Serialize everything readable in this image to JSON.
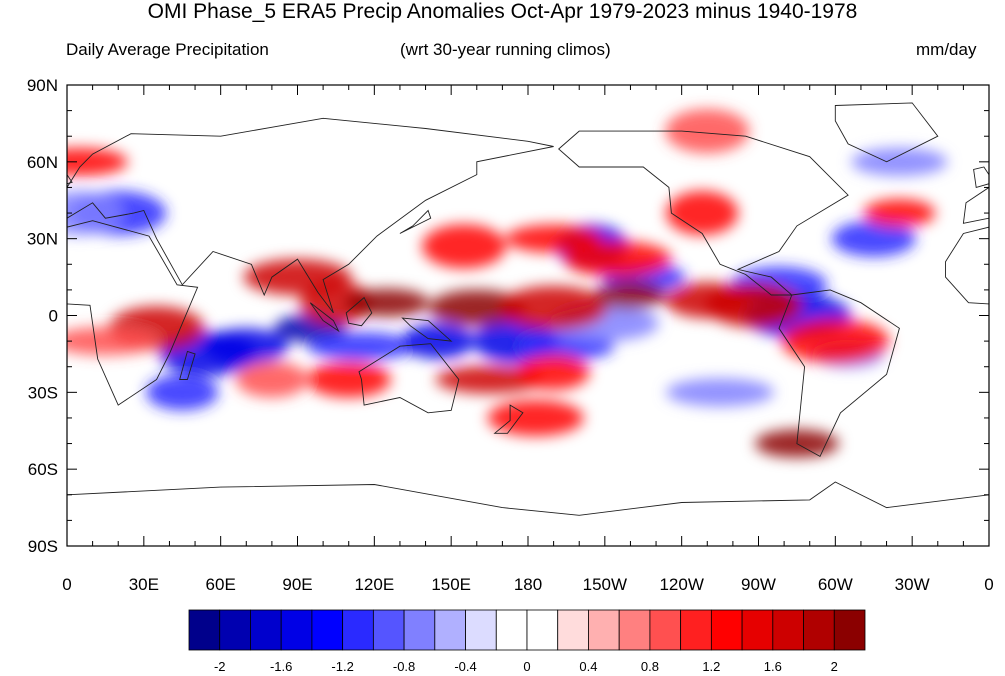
{
  "title": "OMI Phase_5 ERA5 Precip Anomalies Oct-Apr 1979-2023 minus 1940-1978",
  "subtitle_left": "Daily Average Precipitation",
  "subtitle_center": "(wrt 30-year running climos)",
  "subtitle_right": "mm/day",
  "lon_labels": [
    "0",
    "30E",
    "60E",
    "90E",
    "120E",
    "150E",
    "180",
    "150W",
    "120W",
    "90W",
    "60W",
    "30W",
    "0"
  ],
  "lat_labels": [
    "90N",
    "60N",
    "30N",
    "0",
    "30S",
    "60S",
    "90S"
  ],
  "colorbar": {
    "colors": [
      "#00008b",
      "#0000b0",
      "#0000cd",
      "#0000e6",
      "#0000ff",
      "#2a2aff",
      "#5555ff",
      "#8080ff",
      "#b0b0ff",
      "#dcdcff",
      "#ffffff",
      "#ffffff",
      "#ffdcdc",
      "#ffb0b0",
      "#ff8080",
      "#ff5050",
      "#ff2020",
      "#ff0000",
      "#e60000",
      "#cd0000",
      "#b00000",
      "#8b0000"
    ],
    "labels": [
      "-2",
      "-1.6",
      "-1.2",
      "-0.8",
      "-0.4",
      "0",
      "0.4",
      "0.8",
      "1.2",
      "1.6",
      "2"
    ]
  },
  "anomaly_blobs": [
    {
      "lon": 95,
      "lat": -5,
      "val": -2
    },
    {
      "lon": 70,
      "lat": -12,
      "val": -1.6
    },
    {
      "lon": 55,
      "lat": -15,
      "val": -1.6
    },
    {
      "lon": 115,
      "lat": -12,
      "val": -1.2
    },
    {
      "lon": 145,
      "lat": -10,
      "val": -1.6
    },
    {
      "lon": 175,
      "lat": -10,
      "val": -1.6
    },
    {
      "lon": 195,
      "lat": -12,
      "val": -1.2
    },
    {
      "lon": 210,
      "lat": -3,
      "val": -0.8
    },
    {
      "lon": 205,
      "lat": 27,
      "val": -1.6
    },
    {
      "lon": 225,
      "lat": 15,
      "val": -1.2
    },
    {
      "lon": 278,
      "lat": 12,
      "val": -1.2
    },
    {
      "lon": 285,
      "lat": 0,
      "val": -1.6
    },
    {
      "lon": 305,
      "lat": -15,
      "val": -0.8
    },
    {
      "lon": 315,
      "lat": 30,
      "val": -1.2
    },
    {
      "lon": 20,
      "lat": 40,
      "val": -1.2
    },
    {
      "lon": 255,
      "lat": -30,
      "val": -0.8
    },
    {
      "lon": 45,
      "lat": -30,
      "val": -1.2
    },
    {
      "lon": 5,
      "lat": 40,
      "val": -0.8
    },
    {
      "lon": 325,
      "lat": 60,
      "val": -0.8
    },
    {
      "lon": 90,
      "lat": 15,
      "val": 1.6
    },
    {
      "lon": 105,
      "lat": 5,
      "val": 1.6
    },
    {
      "lon": 125,
      "lat": 5,
      "val": 2
    },
    {
      "lon": 160,
      "lat": 3,
      "val": 2
    },
    {
      "lon": 190,
      "lat": 3,
      "val": 1.6
    },
    {
      "lon": 220,
      "lat": 8,
      "val": 2
    },
    {
      "lon": 250,
      "lat": 6,
      "val": 1.6
    },
    {
      "lon": 268,
      "lat": 4,
      "val": 1.6
    },
    {
      "lon": 165,
      "lat": -25,
      "val": 1.6
    },
    {
      "lon": 190,
      "lat": -22,
      "val": 1.2
    },
    {
      "lon": 155,
      "lat": 27,
      "val": 1.2
    },
    {
      "lon": 190,
      "lat": 30,
      "val": 1.2
    },
    {
      "lon": 215,
      "lat": 22,
      "val": 1.2
    },
    {
      "lon": 248,
      "lat": 40,
      "val": 1.2
    },
    {
      "lon": 285,
      "lat": -50,
      "val": 2
    },
    {
      "lon": 183,
      "lat": -40,
      "val": 1.2
    },
    {
      "lon": 300,
      "lat": -10,
      "val": 1.2
    },
    {
      "lon": 325,
      "lat": 40,
      "val": 1.2
    },
    {
      "lon": 110,
      "lat": -25,
      "val": 1.2
    },
    {
      "lon": 35,
      "lat": -5,
      "val": 1.6
    },
    {
      "lon": 15,
      "lat": -10,
      "val": 0.8
    },
    {
      "lon": 80,
      "lat": -25,
      "val": 0.8
    },
    {
      "lon": 250,
      "lat": 72,
      "val": 0.8
    },
    {
      "lon": 5,
      "lat": 60,
      "val": 1.2
    }
  ],
  "continents": [
    {
      "name": "africa",
      "points": [
        [
          -17,
          21
        ],
        [
          -10,
          32
        ],
        [
          10,
          37
        ],
        [
          32,
          31
        ],
        [
          43,
          12
        ],
        [
          51,
          11
        ],
        [
          40,
          -15
        ],
        [
          35,
          -25
        ],
        [
          20,
          -35
        ],
        [
          12,
          -17
        ],
        [
          9,
          4
        ],
        [
          -8,
          5
        ],
        [
          -17,
          15
        ]
      ]
    },
    {
      "name": "europe-asia",
      "points": [
        [
          -10,
          36
        ],
        [
          -9,
          44
        ],
        [
          0,
          50
        ],
        [
          5,
          58
        ],
        [
          10,
          63
        ],
        [
          25,
          71
        ],
        [
          60,
          70
        ],
        [
          100,
          77
        ],
        [
          140,
          73
        ],
        [
          180,
          68
        ],
        [
          190,
          66
        ],
        [
          160,
          60
        ],
        [
          160,
          55
        ],
        [
          140,
          45
        ],
        [
          121,
          31
        ],
        [
          110,
          20
        ],
        [
          100,
          14
        ],
        [
          104,
          1
        ],
        [
          98,
          9
        ],
        [
          90,
          22
        ],
        [
          80,
          15
        ],
        [
          77,
          8
        ],
        [
          72,
          20
        ],
        [
          57,
          25
        ],
        [
          45,
          12
        ],
        [
          35,
          30
        ],
        [
          30,
          41
        ],
        [
          26,
          40
        ],
        [
          15,
          38
        ],
        [
          10,
          44
        ],
        [
          0,
          38
        ]
      ]
    },
    {
      "name": "australia",
      "points": [
        [
          114,
          -22
        ],
        [
          130,
          -12
        ],
        [
          142,
          -11
        ],
        [
          153,
          -25
        ],
        [
          150,
          -37
        ],
        [
          141,
          -38
        ],
        [
          130,
          -32
        ],
        [
          116,
          -35
        ],
        [
          115,
          -25
        ]
      ]
    },
    {
      "name": "north-america",
      "points": [
        [
          192,
          65
        ],
        [
          200,
          72
        ],
        [
          240,
          72
        ],
        [
          265,
          70
        ],
        [
          290,
          62
        ],
        [
          305,
          47
        ],
        [
          285,
          35
        ],
        [
          278,
          25
        ],
        [
          262,
          18
        ],
        [
          275,
          15
        ],
        [
          283,
          8
        ],
        [
          275,
          8
        ],
        [
          265,
          16
        ],
        [
          255,
          20
        ],
        [
          248,
          32
        ],
        [
          236,
          40
        ],
        [
          235,
          50
        ],
        [
          225,
          58
        ],
        [
          200,
          58
        ]
      ]
    },
    {
      "name": "south-america",
      "points": [
        [
          283,
          8
        ],
        [
          298,
          10
        ],
        [
          310,
          5
        ],
        [
          325,
          -5
        ],
        [
          320,
          -23
        ],
        [
          302,
          -38
        ],
        [
          294,
          -55
        ],
        [
          285,
          -50
        ],
        [
          288,
          -20
        ],
        [
          278,
          -5
        ]
      ]
    },
    {
      "name": "greenland",
      "points": [
        [
          300,
          82
        ],
        [
          330,
          83
        ],
        [
          340,
          70
        ],
        [
          320,
          60
        ],
        [
          305,
          67
        ],
        [
          300,
          76
        ]
      ]
    },
    {
      "name": "antarctica",
      "points": [
        [
          0,
          -70
        ],
        [
          60,
          -67
        ],
        [
          120,
          -66
        ],
        [
          170,
          -75
        ],
        [
          200,
          -78
        ],
        [
          240,
          -73
        ],
        [
          290,
          -72
        ],
        [
          300,
          -65
        ],
        [
          320,
          -75
        ],
        [
          360,
          -70
        ],
        [
          360,
          -90
        ],
        [
          0,
          -90
        ]
      ]
    },
    {
      "name": "madagascar",
      "points": [
        [
          44,
          -25
        ],
        [
          47,
          -14
        ],
        [
          50,
          -15
        ],
        [
          47,
          -25
        ]
      ]
    },
    {
      "name": "japan",
      "points": [
        [
          130,
          32
        ],
        [
          135,
          35
        ],
        [
          141,
          41
        ],
        [
          142,
          38
        ]
      ]
    },
    {
      "name": "borneo",
      "points": [
        [
          109,
          1
        ],
        [
          116,
          7
        ],
        [
          119,
          1
        ],
        [
          115,
          -4
        ],
        [
          110,
          -3
        ]
      ]
    },
    {
      "name": "new-guinea",
      "points": [
        [
          131,
          -1
        ],
        [
          141,
          -2
        ],
        [
          150,
          -10
        ],
        [
          141,
          -9
        ],
        [
          134,
          -4
        ]
      ]
    },
    {
      "name": "sumatra",
      "points": [
        [
          95,
          5
        ],
        [
          104,
          -2
        ],
        [
          106,
          -6
        ],
        [
          100,
          -2
        ]
      ]
    },
    {
      "name": "new-zealand",
      "points": [
        [
          173,
          -35
        ],
        [
          178,
          -38
        ],
        [
          172,
          -46
        ],
        [
          167,
          -46
        ],
        [
          173,
          -41
        ]
      ]
    },
    {
      "name": "uk",
      "points": [
        [
          -5,
          50
        ],
        [
          2,
          52
        ],
        [
          -2,
          58
        ],
        [
          -6,
          57
        ]
      ]
    }
  ]
}
